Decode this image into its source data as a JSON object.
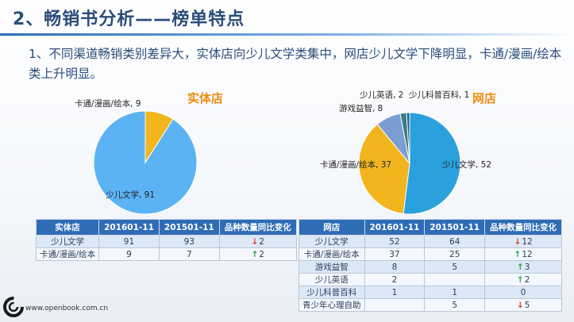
{
  "slide": {
    "title": "2、畅销书分析——榜单特点",
    "subtitle": "1、不同渠道畅销类别差异大，实体店向少儿文学类集中，网店少儿文学下降明显，卡通/漫画/绘本类上升明显。",
    "footer_url": "www.openbook.com.cn"
  },
  "chart_data": [
    {
      "type": "pie",
      "title": "实体店",
      "labels": [
        "少儿文学",
        "卡通/漫画/绘本"
      ],
      "values": [
        91,
        9
      ],
      "colors": [
        "#5cb3f4",
        "#f2b51d"
      ],
      "slice_labels": [
        "少儿文学, 91",
        "卡通/漫画/绘本, 9"
      ]
    },
    {
      "type": "pie",
      "title": "网店",
      "labels": [
        "少儿文学",
        "卡通/漫画/绘本",
        "游戏益智",
        "少儿英语",
        "少儿科普百科"
      ],
      "values": [
        52,
        37,
        8,
        2,
        1
      ],
      "colors": [
        "#2aa1dc",
        "#f2b51d",
        "#7a9ed2",
        "#3c7d7c",
        "#1e5f9a"
      ],
      "slice_labels": [
        "少儿文学, 52",
        "卡通/漫画/绘本, 37",
        "游戏益智, 8",
        "少儿英语, 2",
        "少儿科普百科, 1"
      ]
    }
  ],
  "tables": {
    "store": {
      "headers": [
        "实体店",
        "201601-11",
        "201501-11",
        "品种数量同比变化"
      ],
      "rows": [
        {
          "name": "少儿文学",
          "v2016": "91",
          "v2015": "93",
          "dir": "down",
          "change": "2"
        },
        {
          "name": "卡通/漫画/绘本",
          "v2016": "9",
          "v2015": "7",
          "dir": "up",
          "change": "2"
        }
      ]
    },
    "online": {
      "headers": [
        "网店",
        "201601-11",
        "201501-11",
        "品种数量同比变化"
      ],
      "rows": [
        {
          "name": "少儿文学",
          "v2016": "52",
          "v2015": "64",
          "dir": "down",
          "change": "12"
        },
        {
          "name": "卡通/漫画/绘本",
          "v2016": "37",
          "v2015": "25",
          "dir": "up",
          "change": "12"
        },
        {
          "name": "游戏益智",
          "v2016": "8",
          "v2015": "5",
          "dir": "up",
          "change": "3"
        },
        {
          "name": "少儿英语",
          "v2016": "2",
          "v2015": "",
          "dir": "up",
          "change": "2"
        },
        {
          "name": "少儿科普百科",
          "v2016": "1",
          "v2015": "1",
          "dir": "none",
          "change": "0"
        },
        {
          "name": "青少年心理自助",
          "v2016": "",
          "v2015": "5",
          "dir": "down",
          "change": "5"
        }
      ]
    }
  },
  "arrows": {
    "up": "↑",
    "down": "↓"
  }
}
